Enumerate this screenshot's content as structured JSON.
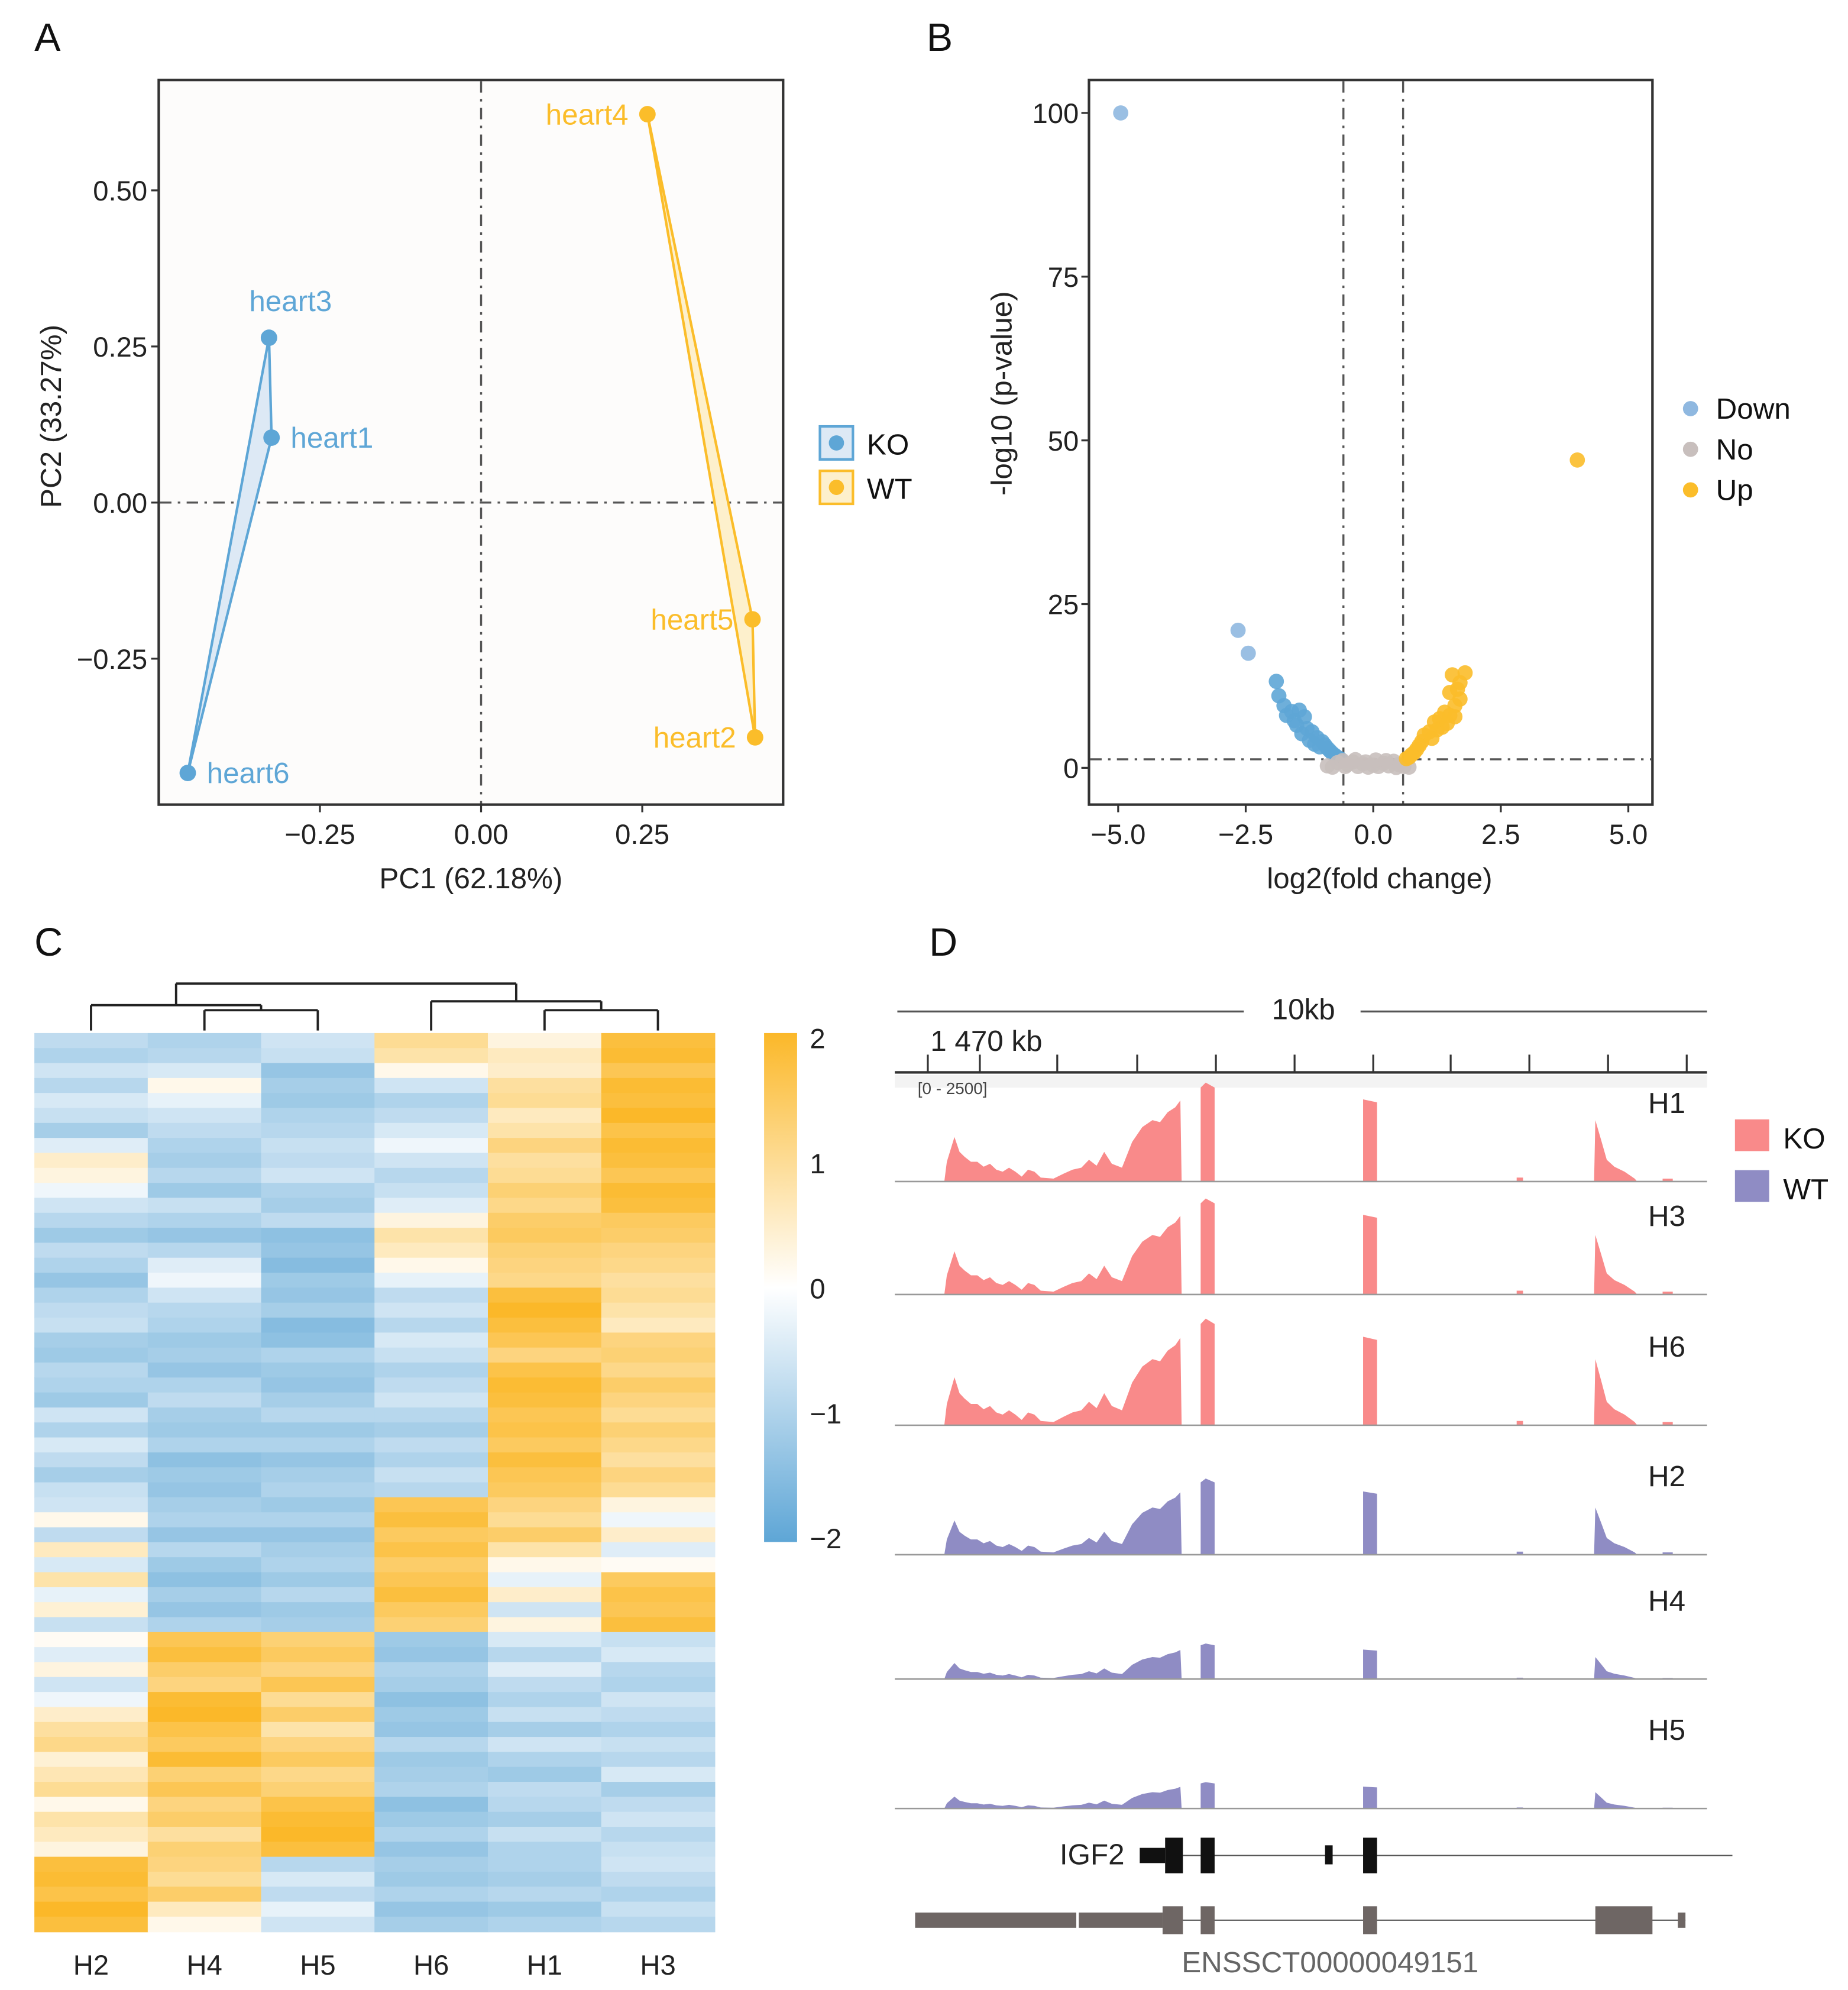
{
  "colors": {
    "ko_blue": "#5ea6d6",
    "wt_orange": "#fbbd2a",
    "no_gray": "#c8bfbd",
    "down": "#8fb8e0",
    "ko_track": "#f98a8a",
    "wt_track": "#8f8cc4",
    "heat_low": "#5ea6d6",
    "heat_mid": "#ffffff",
    "heat_high": "#fbb829"
  },
  "chart_data": [
    {
      "panel": "A",
      "type": "scatter",
      "xlabel": "PC1 (62.18%)",
      "ylabel": "PC2 (33.27%)",
      "xlim": [
        -0.5,
        0.47
      ],
      "ylim": [
        -0.47,
        0.68
      ],
      "xticks": [
        "-0.25",
        "0.00",
        "0.25"
      ],
      "yticks": [
        "-0.25",
        "0.00",
        "0.25",
        "0.50"
      ],
      "reference_lines": {
        "x": 0,
        "y": 0
      },
      "legend": {
        "placement": "right",
        "entries": [
          "KO",
          "WT"
        ]
      },
      "series": [
        {
          "name": "KO",
          "points": [
            {
              "label": "heart3",
              "x": -0.329,
              "y": 0.264
            },
            {
              "label": "heart1",
              "x": -0.325,
              "y": 0.104
            },
            {
              "label": "heart6",
              "x": -0.455,
              "y": -0.433
            }
          ]
        },
        {
          "name": "WT",
          "points": [
            {
              "label": "heart4",
              "x": 0.258,
              "y": 0.622
            },
            {
              "label": "heart5",
              "x": 0.421,
              "y": -0.187
            },
            {
              "label": "heart2",
              "x": 0.425,
              "y": -0.376
            }
          ]
        }
      ]
    },
    {
      "panel": "B",
      "type": "scatter",
      "xlabel": "log2(fold change)",
      "ylabel": "-log10 (p-value)",
      "xlim": [
        -5.6,
        5.5
      ],
      "ylim": [
        -3,
        105
      ],
      "xticks": [
        "-5.0",
        "-2.5",
        "0.0",
        "2.5",
        "5.0"
      ],
      "yticks": [
        "0",
        "25",
        "50",
        "75",
        "100"
      ],
      "thresholds": {
        "x": [
          -0.585,
          0.585
        ],
        "y": 1.3
      },
      "legend": {
        "placement": "right",
        "entries": [
          "Down",
          "No",
          "Up"
        ]
      },
      "series": [
        {
          "name": "Down",
          "points": [
            [
              -4.95,
              100
            ],
            [
              -2.65,
              21
            ],
            [
              -2.45,
              17.5
            ],
            [
              -1.9,
              13.2
            ],
            [
              -1.85,
              11
            ],
            [
              -1.75,
              9.5
            ],
            [
              -1.6,
              8.6
            ],
            [
              -1.45,
              8.8
            ],
            [
              -1.35,
              7.8
            ],
            [
              -1.5,
              6.5
            ],
            [
              -1.3,
              6
            ],
            [
              -1.2,
              5.5
            ],
            [
              -1.4,
              5.2
            ],
            [
              -1.1,
              4.6
            ],
            [
              -1.0,
              4
            ],
            [
              -0.95,
              3.5
            ],
            [
              -0.9,
              3
            ],
            [
              -0.85,
              2.6
            ],
            [
              -0.8,
              2.2
            ],
            [
              -0.75,
              1.9
            ],
            [
              -0.7,
              1.6
            ],
            [
              -1.25,
              4.2
            ],
            [
              -1.15,
              3.6
            ],
            [
              -0.65,
              1.4
            ],
            [
              -1.55,
              7.2
            ],
            [
              -1.7,
              8
            ],
            [
              -1.05,
              3.2
            ]
          ]
        },
        {
          "name": "No",
          "points": [
            [
              -0.9,
              0.3
            ],
            [
              -0.7,
              0.8
            ],
            [
              -0.6,
              1.1
            ],
            [
              -0.5,
              0.5
            ],
            [
              -0.4,
              0.9
            ],
            [
              -0.3,
              0.2
            ],
            [
              -0.2,
              0.6
            ],
            [
              -0.1,
              0.1
            ],
            [
              0,
              0.4
            ],
            [
              0.1,
              0.2
            ],
            [
              0.2,
              0.7
            ],
            [
              0.3,
              0.3
            ],
            [
              0.4,
              1.0
            ],
            [
              0.5,
              0.5
            ],
            [
              0.6,
              0.2
            ],
            [
              0.7,
              0.1
            ],
            [
              -0.8,
              0.1
            ],
            [
              -0.55,
              0.2
            ],
            [
              0.05,
              1.2
            ],
            [
              -0.35,
              1.25
            ],
            [
              0.45,
              0.05
            ],
            [
              -0.15,
              0.9
            ],
            [
              0.25,
              1.1
            ]
          ]
        },
        {
          "name": "Up",
          "points": [
            [
              4.0,
              47
            ],
            [
              1.8,
              14.5
            ],
            [
              1.55,
              14.2
            ],
            [
              1.7,
              13
            ],
            [
              1.65,
              12
            ],
            [
              1.5,
              11.5
            ],
            [
              1.7,
              10.5
            ],
            [
              1.6,
              9.5
            ],
            [
              1.4,
              8.5
            ],
            [
              1.5,
              8
            ],
            [
              1.3,
              7.5
            ],
            [
              1.2,
              7
            ],
            [
              1.35,
              6.2
            ],
            [
              1.1,
              5.5
            ],
            [
              1.0,
              5
            ],
            [
              1.25,
              5.8
            ],
            [
              0.95,
              4
            ],
            [
              0.9,
              3.4
            ],
            [
              0.85,
              2.8
            ],
            [
              0.8,
              2.3
            ],
            [
              0.75,
              2
            ],
            [
              0.7,
              1.6
            ],
            [
              0.65,
              1.4
            ],
            [
              1.15,
              4.5
            ],
            [
              1.45,
              6.8
            ],
            [
              1.6,
              7.8
            ]
          ]
        }
      ]
    },
    {
      "panel": "C",
      "type": "heatmap",
      "columns": [
        "H2",
        "H4",
        "H5",
        "H6",
        "H1",
        "H3"
      ],
      "colorbar": {
        "range": [
          -2,
          2
        ],
        "ticks": [
          "2",
          "1",
          "0",
          "−1",
          "−2"
        ]
      },
      "dendrogram": "((H2,(H4,H5)),(H6,(H1,H3)))",
      "rows": [
        [
          -0.8,
          -1.0,
          -0.6,
          1.0,
          0.3,
          1.8
        ],
        [
          -1.0,
          -0.9,
          -0.7,
          0.8,
          0.6,
          1.9
        ],
        [
          -0.6,
          -0.5,
          -1.3,
          0.2,
          0.5,
          1.6
        ],
        [
          -0.9,
          0.2,
          -1.1,
          -0.6,
          0.9,
          1.9
        ],
        [
          -0.5,
          -0.3,
          -1.2,
          -1.0,
          1.0,
          1.8
        ],
        [
          -0.7,
          -0.6,
          -1.0,
          -0.8,
          0.6,
          2.0
        ],
        [
          -1.1,
          -0.8,
          -0.9,
          -0.5,
          0.8,
          1.7
        ],
        [
          -0.4,
          -1.0,
          -0.7,
          -0.2,
          1.2,
          1.9
        ],
        [
          0.5,
          -1.1,
          -0.8,
          -0.6,
          0.9,
          1.8
        ],
        [
          0.3,
          -0.9,
          -0.6,
          -0.9,
          1.0,
          1.6
        ],
        [
          -0.2,
          -1.2,
          -1.0,
          -0.7,
          1.3,
          1.9
        ],
        [
          -0.6,
          -0.7,
          -1.1,
          -0.4,
          1.1,
          1.8
        ],
        [
          -0.9,
          -1.0,
          -0.8,
          0.3,
          1.4,
          1.5
        ],
        [
          -1.2,
          -1.3,
          -1.4,
          0.8,
          1.5,
          1.4
        ],
        [
          -0.8,
          -0.9,
          -1.3,
          0.6,
          1.3,
          1.2
        ],
        [
          -1.0,
          -0.4,
          -1.5,
          0.2,
          1.2,
          1.1
        ],
        [
          -1.3,
          -0.2,
          -1.2,
          -0.3,
          1.1,
          0.9
        ],
        [
          -1.0,
          -0.6,
          -1.3,
          -0.8,
          1.8,
          1.0
        ],
        [
          -0.8,
          -0.9,
          -1.1,
          -0.6,
          2.0,
          0.8
        ],
        [
          -0.7,
          -1.0,
          -1.5,
          -0.9,
          1.8,
          0.6
        ],
        [
          -1.1,
          -1.2,
          -1.4,
          -0.5,
          1.6,
          1.2
        ],
        [
          -1.2,
          -1.1,
          -1.0,
          -0.7,
          1.2,
          1.3
        ],
        [
          -0.9,
          -1.3,
          -1.2,
          -1.0,
          1.7,
          1.1
        ],
        [
          -1.0,
          -1.0,
          -1.3,
          -0.8,
          1.9,
          1.4
        ],
        [
          -1.2,
          -0.8,
          -1.1,
          -0.6,
          1.8,
          1.2
        ],
        [
          -0.6,
          -1.1,
          -0.9,
          -0.9,
          1.6,
          1.0
        ],
        [
          -1.0,
          -1.2,
          -1.2,
          -1.1,
          1.7,
          1.3
        ],
        [
          -0.5,
          -1.0,
          -1.0,
          -0.8,
          1.5,
          1.1
        ],
        [
          -0.8,
          -1.4,
          -1.3,
          -1.0,
          1.8,
          0.9
        ],
        [
          -1.1,
          -1.2,
          -1.1,
          -0.7,
          1.6,
          1.2
        ],
        [
          -0.7,
          -1.3,
          -1.0,
          -0.9,
          1.5,
          1.0
        ],
        [
          -0.6,
          -1.1,
          -1.2,
          1.6,
          1.2,
          0.3
        ],
        [
          0.2,
          -1.0,
          -1.0,
          1.8,
          1.0,
          -0.2
        ],
        [
          -0.8,
          -1.3,
          -1.3,
          1.5,
          1.4,
          0.5
        ],
        [
          0.6,
          -0.9,
          -1.1,
          1.7,
          0.8,
          -0.4
        ],
        [
          -0.5,
          -1.2,
          -1.0,
          1.4,
          0.2,
          0.1
        ],
        [
          0.8,
          -1.4,
          -1.2,
          1.6,
          -0.3,
          1.5
        ],
        [
          -0.3,
          -1.1,
          -0.9,
          1.8,
          0.5,
          1.7
        ],
        [
          0.4,
          -1.3,
          -1.2,
          1.5,
          -0.6,
          1.6
        ],
        [
          -0.7,
          -1.0,
          -1.1,
          1.3,
          0.3,
          1.8
        ],
        [
          0.1,
          1.6,
          1.3,
          -1.2,
          -0.5,
          -0.7
        ],
        [
          -0.4,
          1.8,
          1.5,
          -1.3,
          -0.9,
          -0.5
        ],
        [
          0.3,
          1.4,
          1.2,
          -1.0,
          -0.4,
          -0.9
        ],
        [
          -0.6,
          1.2,
          1.6,
          -1.1,
          -0.8,
          -1.0
        ],
        [
          -0.2,
          1.9,
          1.0,
          -1.4,
          -1.0,
          -0.6
        ],
        [
          0.5,
          2.0,
          1.4,
          -1.2,
          -0.7,
          -0.8
        ],
        [
          0.9,
          1.7,
          0.8,
          -1.3,
          -1.1,
          -1.0
        ],
        [
          1.1,
          1.5,
          1.2,
          -0.9,
          -0.6,
          -0.7
        ],
        [
          0.4,
          1.9,
          1.5,
          -1.2,
          -1.0,
          -0.9
        ],
        [
          0.7,
          1.3,
          1.1,
          -1.1,
          -1.2,
          -0.5
        ],
        [
          1.0,
          1.6,
          1.3,
          -1.0,
          -0.8,
          -1.1
        ],
        [
          0.2,
          1.2,
          1.7,
          -1.4,
          -0.9,
          -0.8
        ],
        [
          0.8,
          1.4,
          1.9,
          -1.2,
          -1.1,
          -0.6
        ],
        [
          0.6,
          0.9,
          2.0,
          -1.0,
          -0.7,
          -0.9
        ],
        [
          0.3,
          1.3,
          1.8,
          -1.3,
          -1.0,
          -0.7
        ],
        [
          1.8,
          1.2,
          -0.9,
          -1.1,
          -1.0,
          -0.6
        ],
        [
          1.9,
          1.0,
          -0.5,
          -1.2,
          -1.1,
          -0.8
        ],
        [
          1.7,
          1.4,
          -0.8,
          -1.0,
          -0.9,
          -1.0
        ],
        [
          2.0,
          0.6,
          -0.3,
          -1.3,
          -1.2,
          -0.7
        ],
        [
          1.8,
          0.2,
          -0.6,
          -1.1,
          -1.0,
          -0.9
        ]
      ]
    },
    {
      "panel": "D",
      "type": "area",
      "scale_label": "10kb",
      "position_label": "1 470 kb",
      "data_range": "[0 - 2500]",
      "legend": {
        "placement": "right",
        "entries": [
          "KO",
          "WT"
        ]
      },
      "tracks": [
        {
          "name": "H1",
          "group": "KO",
          "peak_fraction": 1.0
        },
        {
          "name": "H3",
          "group": "KO",
          "peak_fraction": 0.97
        },
        {
          "name": "H6",
          "group": "KO",
          "peak_fraction": 1.0
        },
        {
          "name": "H2",
          "group": "WT",
          "peak_fraction": 0.75
        },
        {
          "name": "H4",
          "group": "WT",
          "peak_fraction": 0.35
        },
        {
          "name": "H5",
          "group": "WT",
          "peak_fraction": 0.26
        }
      ],
      "genes": [
        "IGF2",
        "ENSSCT00000049151"
      ]
    }
  ],
  "panel_labels": [
    "A",
    "B",
    "C",
    "D"
  ]
}
